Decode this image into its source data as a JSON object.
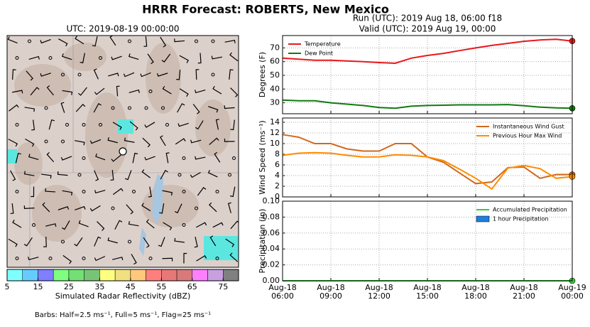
{
  "title": "HRRR Forecast: ROBERTS, New Mexico",
  "chart_data": [
    {
      "type": "map",
      "title": "UTC: 2019-08-19 00:00:00",
      "footnote": "Barbs: Half=2.5 ms⁻¹, Full=5 ms⁻¹, Flag=25 ms⁻¹"
    },
    {
      "type": "colorbar",
      "xlabel": "Simulated Radar Reflectivity (dBZ)",
      "bins": [
        5,
        10,
        15,
        20,
        25,
        30,
        35,
        40,
        45,
        50,
        55,
        60,
        65,
        70,
        75,
        80
      ],
      "colors": [
        "#80ffff",
        "#66ccff",
        "#7f7fff",
        "#7fff7f",
        "#72e072",
        "#77c477",
        "#ffff80",
        "#f0e080",
        "#ffc87a",
        "#ff7f7f",
        "#e87878",
        "#d87a7a",
        "#ff80ff",
        "#c8a0e0",
        "#808080"
      ],
      "xlim": [
        5,
        80
      ],
      "xticks": [
        5,
        15,
        25,
        35,
        45,
        55,
        65,
        75
      ]
    },
    {
      "type": "line",
      "title": "Run (UTC): 2019 Aug 18, 06:00 f18",
      "subtitle": "Valid (UTC): 2019 Aug 19, 00:00",
      "ylabel": "Degrees (F)",
      "ylim": [
        22,
        79
      ],
      "yticks": [
        30,
        40,
        50,
        60,
        70
      ],
      "grid": true,
      "legend": "upper left",
      "xlim": [
        "2019-08-18 06:00",
        "2019-08-19 00:00"
      ],
      "x": [
        "2019-08-18 06:00",
        "2019-08-18 07:00",
        "2019-08-18 08:00",
        "2019-08-18 09:00",
        "2019-08-18 10:00",
        "2019-08-18 11:00",
        "2019-08-18 12:00",
        "2019-08-18 13:00",
        "2019-08-18 14:00",
        "2019-08-18 15:00",
        "2019-08-18 16:00",
        "2019-08-18 17:00",
        "2019-08-18 18:00",
        "2019-08-18 19:00",
        "2019-08-18 20:00",
        "2019-08-18 21:00",
        "2019-08-18 22:00",
        "2019-08-18 23:00",
        "2019-08-19 00:00"
      ],
      "series": [
        {
          "name": "Temperature",
          "color": "#e8191e",
          "values": [
            62.5,
            61.8,
            61,
            61,
            60.5,
            60,
            59.3,
            58.8,
            62.5,
            64.5,
            66,
            68,
            70,
            71.8,
            73.3,
            74.8,
            75.8,
            76.3,
            75
          ]
        },
        {
          "name": "Dew Point",
          "color": "#117a11",
          "values": [
            32,
            31.5,
            31.5,
            30,
            29,
            28,
            26.5,
            26,
            27.5,
            28,
            28.2,
            28.5,
            28.5,
            28.5,
            28.7,
            27.8,
            26.8,
            26.3,
            26
          ]
        }
      ]
    },
    {
      "type": "line",
      "ylabel": "Wind Speed (ms⁻¹)",
      "ylim": [
        0,
        14.8
      ],
      "yticks": [
        0,
        2,
        4,
        6,
        8,
        10,
        12,
        14
      ],
      "grid": true,
      "legend": "upper right",
      "xlim": [
        "2019-08-18 06:00",
        "2019-08-19 00:00"
      ],
      "x": [
        "2019-08-18 06:00",
        "2019-08-18 07:00",
        "2019-08-18 08:00",
        "2019-08-18 09:00",
        "2019-08-18 10:00",
        "2019-08-18 11:00",
        "2019-08-18 12:00",
        "2019-08-18 13:00",
        "2019-08-18 14:00",
        "2019-08-18 15:00",
        "2019-08-18 16:00",
        "2019-08-18 17:00",
        "2019-08-18 18:00",
        "2019-08-18 19:00",
        "2019-08-18 20:00",
        "2019-08-18 21:00",
        "2019-08-18 22:00",
        "2019-08-18 23:00",
        "2019-08-19 00:00"
      ],
      "series": [
        {
          "name": "Instantaneous Wind Gust",
          "color": "#d2691e",
          "values": [
            11.7,
            11.2,
            10,
            10,
            9,
            8.6,
            8.6,
            10,
            10,
            7.5,
            6.5,
            4.5,
            2.5,
            2.8,
            5.5,
            5.6,
            3.5,
            4.2,
            4.2
          ]
        },
        {
          "name": "Previous Hour Max Wind",
          "color": "#ff8c00",
          "values": [
            7.8,
            8.2,
            8.3,
            8.2,
            7.8,
            7.5,
            7.5,
            7.9,
            7.8,
            7.5,
            6.8,
            5.2,
            3.5,
            1.5,
            5.4,
            5.9,
            5.3,
            3.5,
            3.8
          ]
        }
      ]
    },
    {
      "type": "line",
      "ylabel": "Precipitation (in)",
      "ylim": [
        0,
        0.1
      ],
      "grid": true,
      "legend": "upper right",
      "yticks": [
        {
          "value": 0,
          "label": "0.00"
        },
        {
          "value": 0.02,
          "label": "0.02"
        },
        {
          "value": 0.04,
          "label": "0.04"
        },
        {
          "value": 0.06,
          "label": "0.06"
        },
        {
          "value": 0.08,
          "label": "0.08"
        },
        {
          "value": 0.1,
          "label": "0.10"
        }
      ],
      "xlim": [
        "2019-08-18 06:00",
        "2019-08-19 00:00"
      ],
      "xticks": [
        {
          "value": "2019-08-18 06:00",
          "label": "Aug-18\n06:00"
        },
        {
          "value": "2019-08-18 09:00",
          "label": "Aug-18\n09:00"
        },
        {
          "value": "2019-08-18 12:00",
          "label": "Aug-18\n12:00"
        },
        {
          "value": "2019-08-18 15:00",
          "label": "Aug-18\n15:00"
        },
        {
          "value": "2019-08-18 18:00",
          "label": "Aug-18\n18:00"
        },
        {
          "value": "2019-08-18 21:00",
          "label": "Aug-18\n21:00"
        },
        {
          "value": "2019-08-19 00:00",
          "label": "Aug-19\n00:00"
        }
      ],
      "x": [
        "2019-08-18 06:00",
        "2019-08-18 07:00",
        "2019-08-18 08:00",
        "2019-08-18 09:00",
        "2019-08-18 10:00",
        "2019-08-18 11:00",
        "2019-08-18 12:00",
        "2019-08-18 13:00",
        "2019-08-18 14:00",
        "2019-08-18 15:00",
        "2019-08-18 16:00",
        "2019-08-18 17:00",
        "2019-08-18 18:00",
        "2019-08-18 19:00",
        "2019-08-18 20:00",
        "2019-08-18 21:00",
        "2019-08-18 22:00",
        "2019-08-18 23:00",
        "2019-08-19 00:00"
      ],
      "series": [
        {
          "name": "Accumulated Precipitation",
          "color": "#32cd32",
          "values": [
            0,
            0,
            0,
            0,
            0,
            0,
            0,
            0,
            0,
            0,
            0,
            0,
            0,
            0,
            0,
            0,
            0,
            0,
            0
          ]
        },
        {
          "name": "1 hour Precipitation",
          "color": "#1e7fe0",
          "style": "bar",
          "values": [
            0,
            0,
            0,
            0,
            0,
            0,
            0,
            0,
            0,
            0,
            0,
            0,
            0,
            0,
            0,
            0,
            0,
            0,
            0
          ]
        }
      ]
    }
  ]
}
